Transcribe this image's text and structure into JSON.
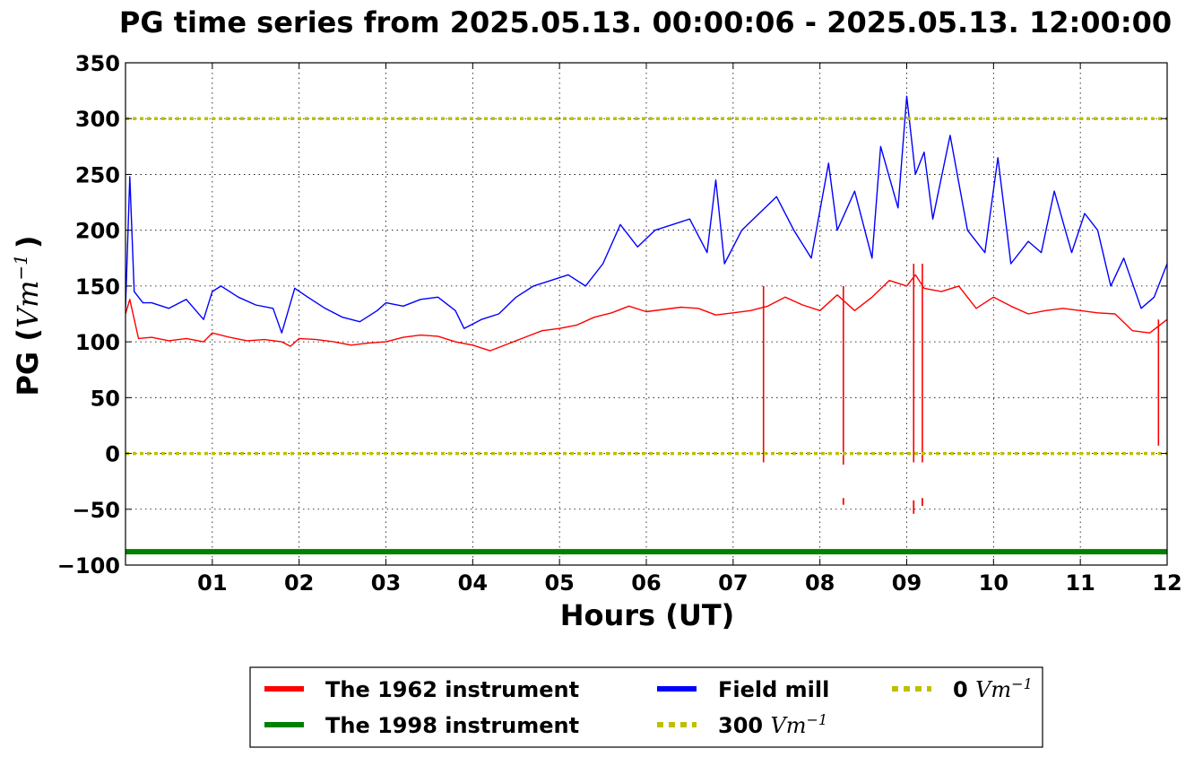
{
  "chart_data": {
    "type": "line",
    "title": "PG time series from 2025.05.13. 00:00:06 - 2025.05.13. 12:00:00",
    "xlabel": "Hours (UT)",
    "ylabel_text": "PG (",
    "ylabel_unit": "Vm",
    "ylabel_exp": "−1",
    "ylabel_close": ")",
    "xlim": [
      0,
      12
    ],
    "ylim": [
      -100,
      350
    ],
    "grid": true,
    "legend_position": "below",
    "x_ticks": [
      {
        "value": 1,
        "label": "01"
      },
      {
        "value": 2,
        "label": "02"
      },
      {
        "value": 3,
        "label": "03"
      },
      {
        "value": 4,
        "label": "04"
      },
      {
        "value": 5,
        "label": "05"
      },
      {
        "value": 6,
        "label": "06"
      },
      {
        "value": 7,
        "label": "07"
      },
      {
        "value": 8,
        "label": "08"
      },
      {
        "value": 9,
        "label": "09"
      },
      {
        "value": 10,
        "label": "10"
      },
      {
        "value": 11,
        "label": "11"
      },
      {
        "value": 12,
        "label": "12"
      }
    ],
    "y_ticks": [
      {
        "value": 350,
        "label": "350"
      },
      {
        "value": 300,
        "label": "300"
      },
      {
        "value": 250,
        "label": "250"
      },
      {
        "value": 200,
        "label": "200"
      },
      {
        "value": 150,
        "label": "150"
      },
      {
        "value": 100,
        "label": "100"
      },
      {
        "value": 50,
        "label": "50"
      },
      {
        "value": 0,
        "label": "0"
      },
      {
        "value": -50,
        "label": "−50"
      },
      {
        "value": -100,
        "label": "−100"
      }
    ],
    "series": [
      {
        "name": "The 1962 instrument",
        "color": "#ff0000",
        "x": [
          0,
          0.05,
          0.15,
          0.3,
          0.5,
          0.7,
          0.9,
          1.0,
          1.2,
          1.4,
          1.6,
          1.8,
          1.9,
          2.0,
          2.2,
          2.4,
          2.6,
          2.8,
          3.0,
          3.2,
          3.4,
          3.6,
          3.8,
          4.0,
          4.2,
          4.4,
          4.6,
          4.8,
          5.0,
          5.2,
          5.4,
          5.6,
          5.8,
          6.0,
          6.2,
          6.4,
          6.6,
          6.8,
          7.0,
          7.2,
          7.4,
          7.6,
          7.8,
          8.0,
          8.2,
          8.4,
          8.6,
          8.8,
          9.0,
          9.1,
          9.2,
          9.4,
          9.6,
          9.8,
          10.0,
          10.2,
          10.4,
          10.6,
          10.8,
          11.0,
          11.2,
          11.4,
          11.6,
          11.8,
          12.0
        ],
        "y": [
          125,
          138,
          103,
          104,
          101,
          103,
          100,
          108,
          104,
          101,
          102,
          100,
          96,
          103,
          102,
          100,
          97,
          99,
          100,
          104,
          106,
          105,
          100,
          97,
          92,
          98,
          104,
          110,
          112,
          115,
          122,
          126,
          132,
          127,
          129,
          131,
          130,
          124,
          126,
          128,
          132,
          140,
          133,
          128,
          142,
          128,
          140,
          155,
          150,
          160,
          148,
          145,
          150,
          130,
          140,
          132,
          125,
          128,
          130,
          128,
          126,
          125,
          110,
          108,
          120
        ]
      },
      {
        "name": "The 1998 instrument",
        "color": "#008000",
        "x": [
          0,
          12
        ],
        "y": [
          -88,
          -88
        ]
      },
      {
        "name": "Field mill",
        "color": "#0000ff",
        "x": [
          0,
          0.05,
          0.1,
          0.2,
          0.3,
          0.5,
          0.7,
          0.9,
          1.0,
          1.1,
          1.3,
          1.5,
          1.7,
          1.8,
          1.95,
          2.1,
          2.3,
          2.5,
          2.7,
          2.9,
          3.0,
          3.2,
          3.4,
          3.6,
          3.8,
          3.9,
          4.1,
          4.3,
          4.5,
          4.7,
          4.9,
          5.1,
          5.3,
          5.5,
          5.7,
          5.9,
          6.1,
          6.3,
          6.5,
          6.7,
          6.8,
          6.9,
          7.1,
          7.3,
          7.5,
          7.7,
          7.9,
          8.1,
          8.2,
          8.4,
          8.6,
          8.7,
          8.9,
          9.0,
          9.1,
          9.2,
          9.3,
          9.5,
          9.7,
          9.9,
          10.05,
          10.2,
          10.4,
          10.55,
          10.7,
          10.9,
          11.05,
          11.2,
          11.35,
          11.5,
          11.7,
          11.85,
          12.0
        ],
        "y": [
          130,
          248,
          145,
          135,
          135,
          130,
          138,
          120,
          145,
          150,
          140,
          133,
          130,
          108,
          148,
          140,
          130,
          122,
          118,
          128,
          135,
          132,
          138,
          140,
          128,
          112,
          120,
          125,
          140,
          150,
          155,
          160,
          150,
          170,
          205,
          185,
          200,
          205,
          210,
          180,
          245,
          170,
          200,
          215,
          230,
          200,
          175,
          260,
          200,
          235,
          175,
          275,
          220,
          320,
          250,
          270,
          210,
          285,
          200,
          180,
          265,
          170,
          190,
          180,
          235,
          180,
          215,
          200,
          150,
          175,
          130,
          140,
          170
        ]
      },
      {
        "name": "300 Vm−1",
        "color": "#bfbf00",
        "x": [
          0,
          12
        ],
        "y": [
          300,
          300
        ]
      },
      {
        "name": "0 Vm−1",
        "color": "#bfbf00",
        "x": [
          0,
          12
        ],
        "y": [
          0,
          0
        ]
      }
    ],
    "spikes_1962": [
      {
        "x": 7.35,
        "y_low": -8,
        "y_high": 150
      },
      {
        "x": 8.27,
        "y_low": -10,
        "y_high": 150
      },
      {
        "x": 9.08,
        "y_low": -8,
        "y_high": 170
      },
      {
        "x": 9.18,
        "y_low": -8,
        "y_high": 170
      },
      {
        "x": 11.9,
        "y_low": 7,
        "y_high": 120
      }
    ],
    "isolated_points_1962": [
      {
        "x": 8.27,
        "y_low": -46,
        "y_high": -40
      },
      {
        "x": 9.08,
        "y_low": -54,
        "y_high": -42
      },
      {
        "x": 9.18,
        "y_low": -47,
        "y_high": -40
      }
    ],
    "legend": {
      "items": [
        {
          "label": "The 1962 instrument",
          "color": "#ff0000",
          "style": "solid",
          "unit": ""
        },
        {
          "label": "The 1998 instrument",
          "color": "#008000",
          "style": "solid",
          "unit": ""
        },
        {
          "label": "Field mill",
          "color": "#0000ff",
          "style": "solid",
          "unit": ""
        },
        {
          "label": "300 ",
          "color": "#bfbf00",
          "style": "dotted",
          "unit": "Vm",
          "exp": "−1"
        },
        {
          "label": "0 ",
          "color": "#bfbf00",
          "style": "dotted",
          "unit": "Vm",
          "exp": "−1"
        }
      ]
    }
  }
}
